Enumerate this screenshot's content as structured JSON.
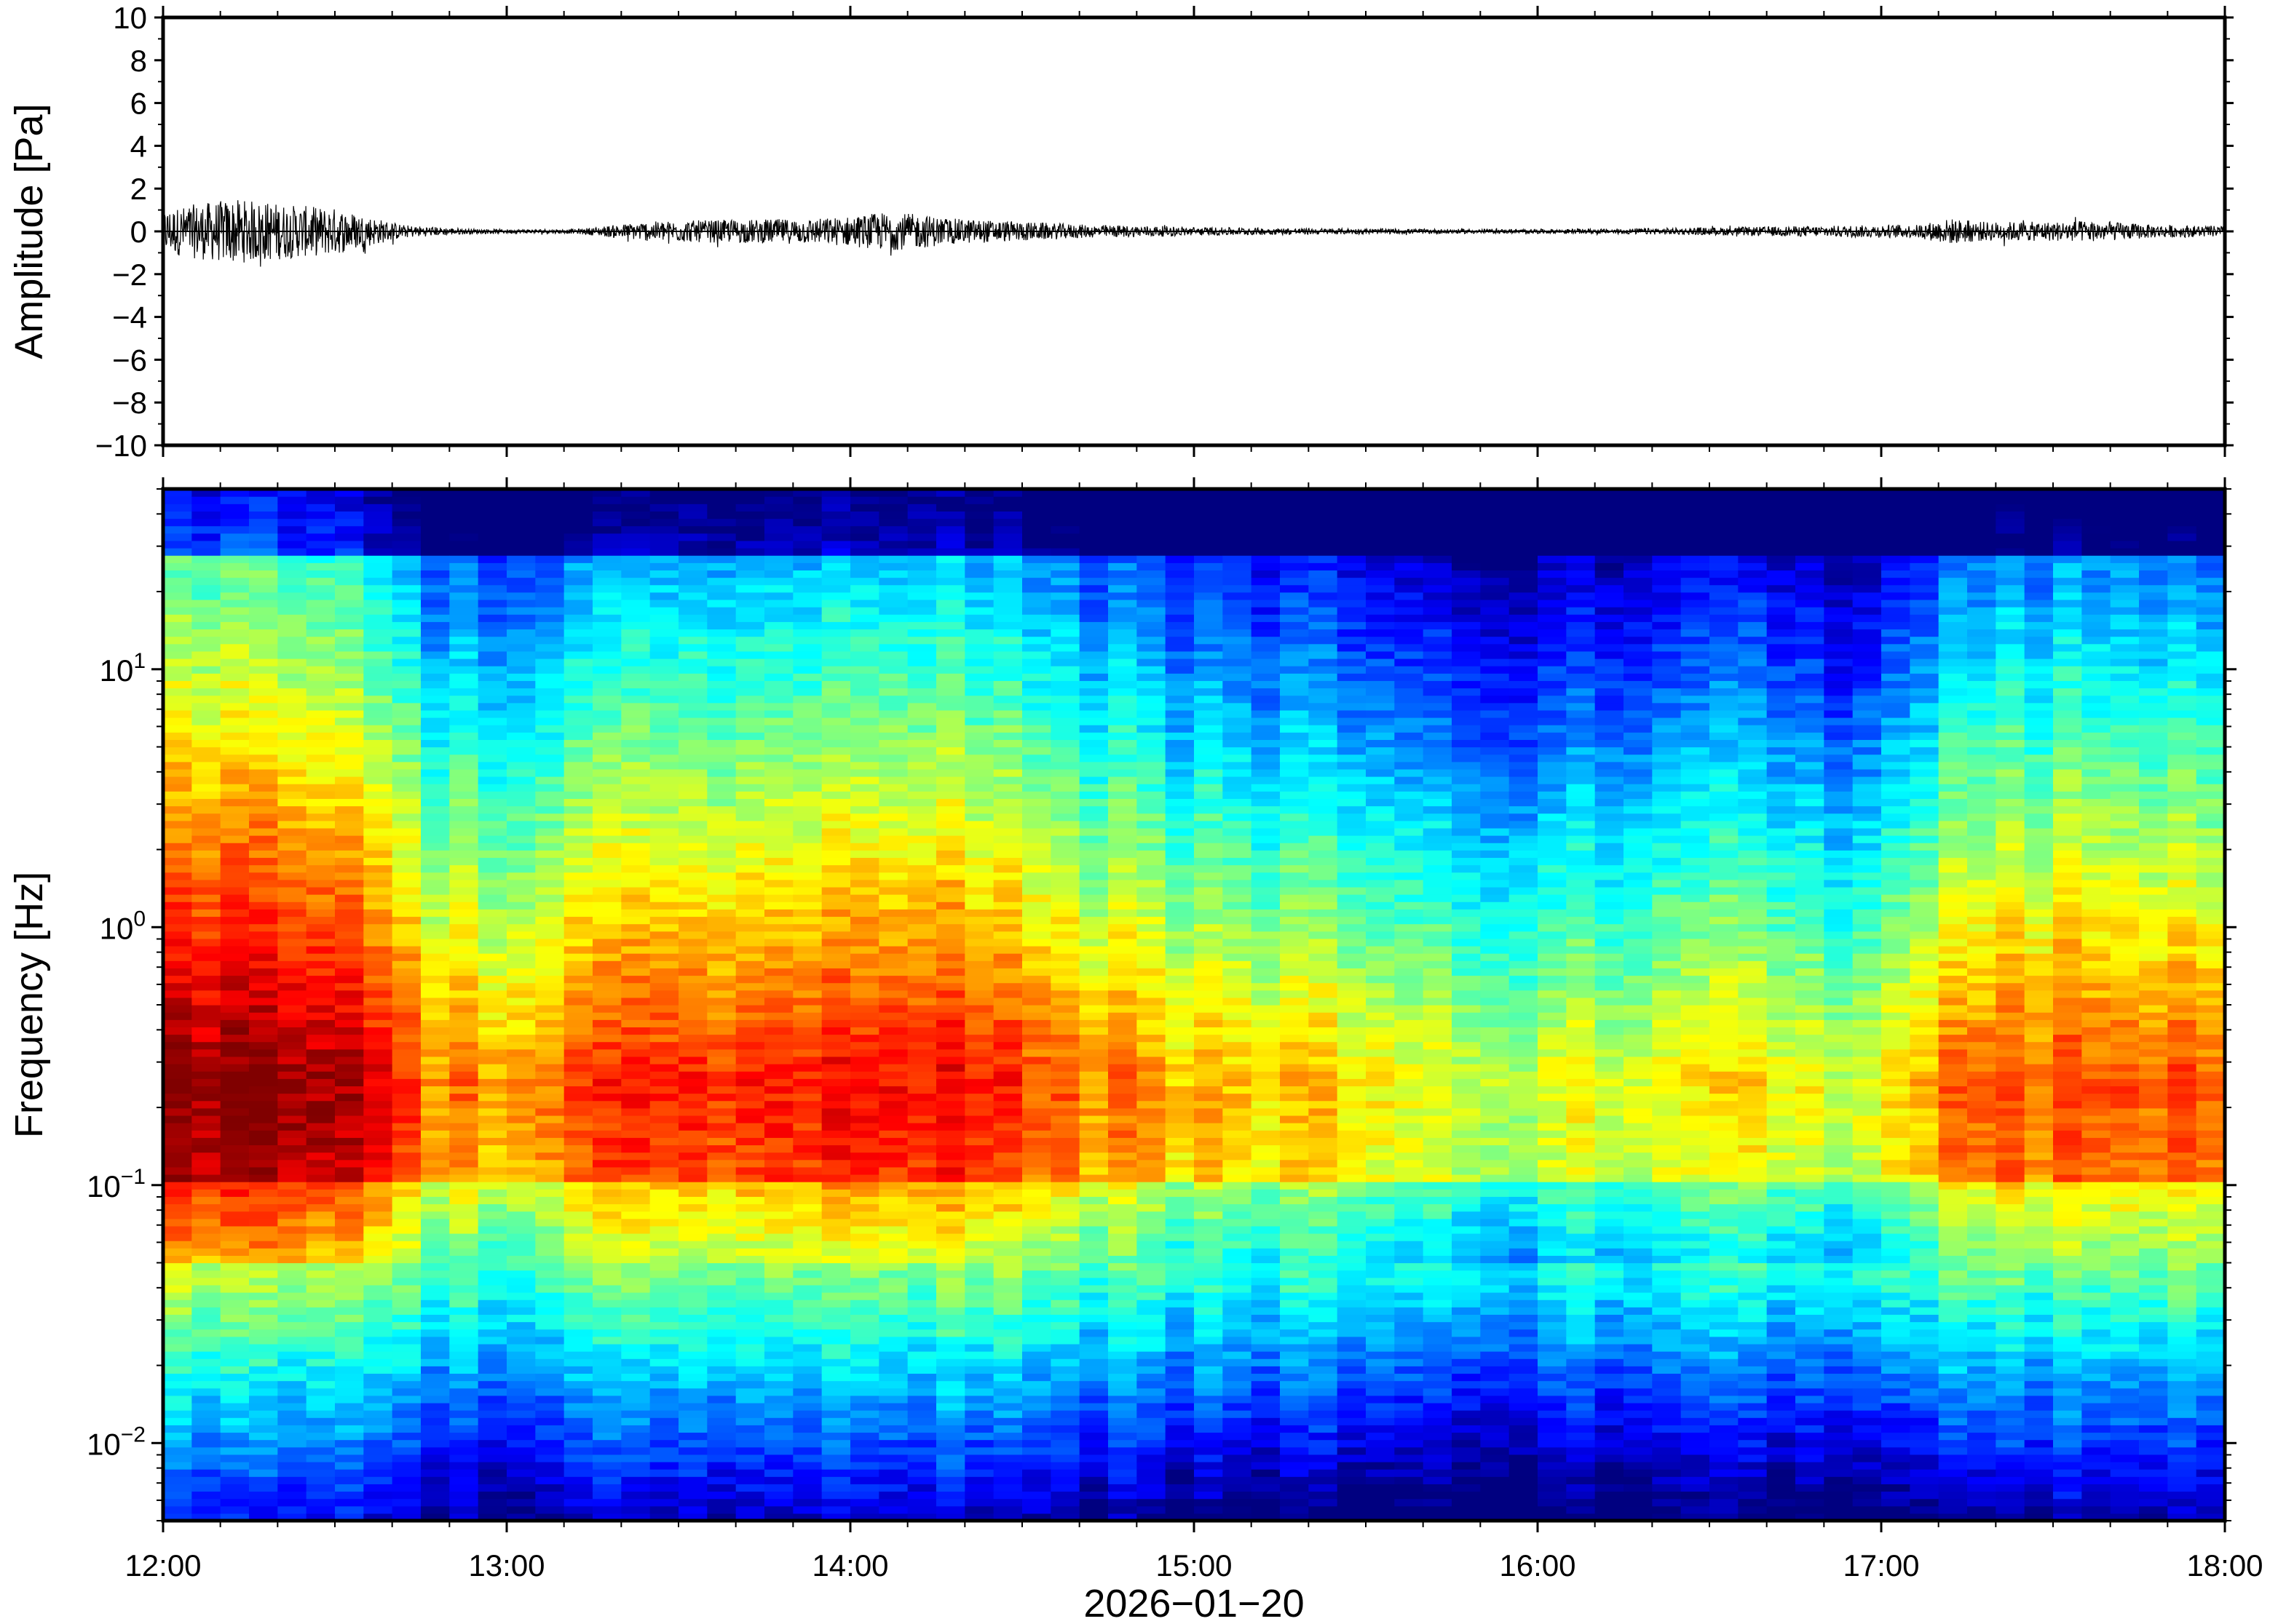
{
  "chart_data": [
    {
      "type": "line",
      "panel": "waveform",
      "ylabel": "Amplitude [Pa]",
      "ylim": [
        -10,
        10
      ],
      "yticks": [
        10,
        8,
        6,
        4,
        2,
        0,
        -2,
        -4,
        -6,
        -8,
        -10
      ],
      "ytick_labels": [
        "10",
        "8",
        "6",
        "4",
        "2",
        "0",
        "−2",
        "−4",
        "−6",
        "−8",
        "−10"
      ],
      "x_range_hours": [
        12,
        18
      ],
      "line_color": "#000000",
      "envelope": {
        "hours": [
          12.0,
          12.1,
          12.2,
          12.3,
          12.4,
          12.5,
          12.6,
          12.7,
          12.8,
          12.9,
          13.0,
          13.2,
          13.4,
          13.5,
          13.7,
          13.9,
          14.0,
          14.1,
          14.2,
          14.3,
          14.5,
          14.7,
          14.9,
          15.0,
          15.3,
          15.6,
          15.9,
          16.2,
          16.5,
          16.8,
          17.0,
          17.1,
          17.2,
          17.3,
          17.5,
          17.6,
          17.8,
          18.0
        ],
        "amplitude": [
          1.0,
          1.3,
          1.5,
          1.4,
          1.2,
          1.1,
          0.7,
          0.3,
          0.2,
          0.12,
          0.1,
          0.1,
          0.45,
          0.5,
          0.55,
          0.6,
          0.7,
          0.9,
          0.8,
          0.6,
          0.45,
          0.3,
          0.25,
          0.2,
          0.15,
          0.12,
          0.1,
          0.12,
          0.18,
          0.25,
          0.3,
          0.3,
          0.6,
          0.45,
          0.45,
          0.5,
          0.3,
          0.25
        ]
      }
    },
    {
      "type": "heatmap",
      "panel": "spectrogram",
      "ylabel": "Frequency [Hz]",
      "y_scale": "log",
      "ylim": [
        0.005,
        50
      ],
      "yticks": [
        0.01,
        0.1,
        1,
        10
      ],
      "ytick_base": [
        "10",
        "10",
        "10",
        "10"
      ],
      "ytick_exp": [
        "−2",
        "−1",
        "0",
        "1"
      ],
      "colormap": "jet",
      "relative_level": {
        "hours": [
          12.0,
          12.3,
          12.6,
          12.8,
          13.0,
          13.4,
          14.0,
          14.2,
          14.5,
          15.0,
          15.5,
          15.9,
          16.3,
          16.7,
          16.9,
          17.1,
          17.3,
          17.6,
          18.0
        ],
        "activity": [
          0.85,
          0.95,
          0.75,
          0.45,
          0.45,
          0.6,
          0.65,
          0.7,
          0.55,
          0.35,
          0.3,
          0.15,
          0.2,
          0.28,
          0.05,
          0.35,
          0.55,
          0.55,
          0.5
        ]
      }
    }
  ],
  "x_axis": {
    "ticks_hours": [
      12,
      13,
      14,
      15,
      16,
      17,
      18
    ],
    "tick_labels": [
      "12:00",
      "13:00",
      "14:00",
      "15:00",
      "16:00",
      "17:00",
      "18:00"
    ],
    "xlabel": "2026−01−20"
  }
}
